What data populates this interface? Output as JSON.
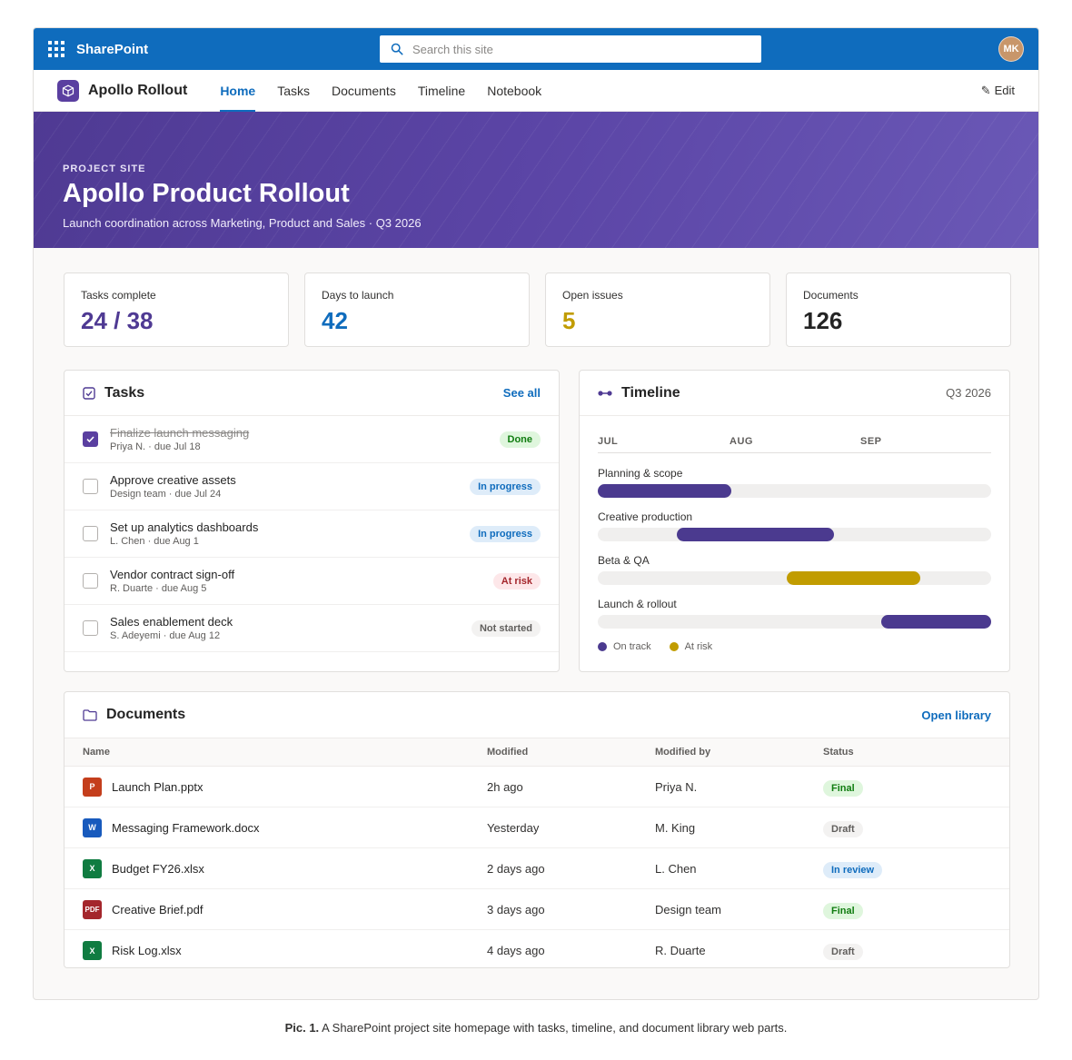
{
  "suite": {
    "brand": "SharePoint",
    "search_placeholder": "Search this site",
    "avatar_initials": "MK"
  },
  "site": {
    "name": "Apollo Rollout",
    "nav": [
      {
        "label": "Home",
        "active": true
      },
      {
        "label": "Tasks"
      },
      {
        "label": "Documents"
      },
      {
        "label": "Timeline"
      },
      {
        "label": "Notebook"
      }
    ],
    "edit_label": "Edit"
  },
  "hero": {
    "eyebrow": "PROJECT SITE",
    "title": "Apollo Product Rollout",
    "subtitle": "Launch coordination across Marketing, Product and Sales · Q3 2026"
  },
  "stats": [
    {
      "label": "Tasks complete",
      "value": "24 / 38",
      "color": "#4f3a93"
    },
    {
      "label": "Days to launch",
      "value": "42",
      "color": "#0f6cbd"
    },
    {
      "label": "Open issues",
      "value": "5",
      "color": "#c19c00"
    },
    {
      "label": "Documents",
      "value": "126",
      "color": "#242424"
    }
  ],
  "tasks": {
    "title": "Tasks",
    "action": "See all",
    "items": [
      {
        "title": "Finalize launch messaging",
        "meta": "Priya N. · due Jul 18",
        "status": "Done",
        "done": true
      },
      {
        "title": "Approve creative assets",
        "meta": "Design team · due Jul 24",
        "status": "In progress"
      },
      {
        "title": "Set up analytics dashboards",
        "meta": "L. Chen · due Aug 1",
        "status": "In progress"
      },
      {
        "title": "Vendor contract sign-off",
        "meta": "R. Duarte · due Aug 5",
        "status": "At risk"
      },
      {
        "title": "Sales enablement deck",
        "meta": "S. Adeyemi · due Aug 12",
        "status": "Not started"
      }
    ]
  },
  "timeline": {
    "title": "Timeline",
    "period": "Q3 2026",
    "months": [
      "JUL",
      "AUG",
      "SEP"
    ],
    "rows": [
      {
        "label": "Planning & scope",
        "start": 0.0,
        "end": 0.34,
        "status": "on-track"
      },
      {
        "label": "Creative production",
        "start": 0.2,
        "end": 0.6,
        "status": "on-track"
      },
      {
        "label": "Beta & QA",
        "start": 0.48,
        "end": 0.82,
        "status": "at-risk"
      },
      {
        "label": "Launch & rollout",
        "start": 0.72,
        "end": 1.0,
        "status": "on-track"
      }
    ],
    "legend": {
      "on_track": "On track",
      "at_risk": "At risk"
    },
    "colors": {
      "on_track": "#4b3a8f",
      "at_risk": "#c19c00"
    }
  },
  "documents": {
    "title": "Documents",
    "action": "Open library",
    "columns": [
      "Name",
      "Modified",
      "Modified by",
      "Status"
    ],
    "rows": [
      {
        "type": "P",
        "color": "#c43e1c",
        "name": "Launch Plan.pptx",
        "modified": "2h ago",
        "by": "Priya N.",
        "status": "Final"
      },
      {
        "type": "W",
        "color": "#185abd",
        "name": "Messaging Framework.docx",
        "modified": "Yesterday",
        "by": "M. King",
        "status": "Draft"
      },
      {
        "type": "X",
        "color": "#107c41",
        "name": "Budget FY26.xlsx",
        "modified": "2 days ago",
        "by": "L. Chen",
        "status": "In review"
      },
      {
        "type": "PDF",
        "color": "#a4262c",
        "name": "Creative Brief.pdf",
        "modified": "3 days ago",
        "by": "Design team",
        "status": "Final"
      },
      {
        "type": "X",
        "color": "#107c41",
        "name": "Risk Log.xlsx",
        "modified": "4 days ago",
        "by": "R. Duarte",
        "status": "Draft"
      }
    ]
  },
  "caption": {
    "label": "Pic. 1.",
    "text": "A SharePoint project site homepage with tasks, timeline, and document library web parts."
  }
}
